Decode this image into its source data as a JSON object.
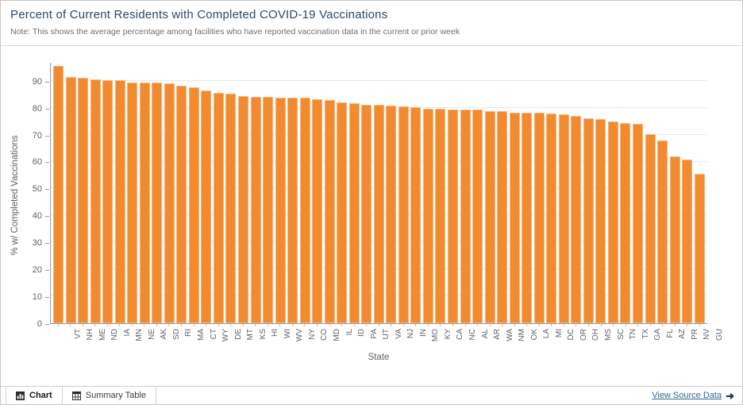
{
  "header": {
    "title": "Percent of Current Residents with Completed COVID-19 Vaccinations",
    "note": "Note: This shows the average percentage among facilities who have reported vaccination data in the current or prior week"
  },
  "chart_data": {
    "type": "bar",
    "title": "Percent of Current Residents with Completed COVID-19 Vaccinations",
    "xlabel": "State",
    "ylabel": "% w/ Completed Vaccinations",
    "ylim": [
      0,
      97
    ],
    "yticks": [
      0,
      10,
      20,
      30,
      40,
      50,
      60,
      70,
      80,
      90
    ],
    "grid": true,
    "bar_color": "#f28b30",
    "value_label_color": "#ffffff",
    "value_label_style": "rotated vertical, inside top of bar, 2 decimals",
    "categories": [
      "VT",
      "NH",
      "ME",
      "ND",
      "IA",
      "MN",
      "NE",
      "AK",
      "SD",
      "RI",
      "MA",
      "CT",
      "WY",
      "DE",
      "MT",
      "KS",
      "HI",
      "WI",
      "WV",
      "NY",
      "CO",
      "MD",
      "IL",
      "ID",
      "PA",
      "UT",
      "VA",
      "NJ",
      "IN",
      "MO",
      "KY",
      "CA",
      "NC",
      "AL",
      "AR",
      "WA",
      "NM",
      "OK",
      "LA",
      "MI",
      "DC",
      "OR",
      "OH",
      "MS",
      "SC",
      "TN",
      "TX",
      "GA",
      "FL",
      "AZ",
      "PR",
      "NV",
      "GU"
    ],
    "values": [
      95.42,
      91.45,
      91.24,
      90.5,
      90.25,
      90.14,
      89.47,
      89.35,
      89.31,
      88.99,
      88.03,
      87.51,
      86.28,
      85.6,
      85.18,
      84.42,
      84.15,
      84.04,
      83.82,
      83.78,
      83.73,
      83.19,
      83.0,
      81.99,
      81.73,
      81.06,
      80.95,
      80.85,
      80.41,
      80.08,
      79.73,
      79.58,
      79.42,
      79.23,
      79.18,
      78.83,
      78.81,
      78.26,
      78.14,
      78.11,
      77.91,
      77.61,
      76.86,
      76.11,
      75.78,
      74.83,
      74.33,
      74.13,
      70.28,
      67.71,
      61.92,
      60.87,
      55.56
    ]
  },
  "footer": {
    "tabs": [
      {
        "label": "Chart",
        "icon": "bar-chart-icon",
        "active": true
      },
      {
        "label": "Summary Table",
        "icon": "table-icon",
        "active": false
      }
    ],
    "source_link_label": "View Source Data",
    "source_arrow_icon": "➜"
  },
  "colors": {
    "bar": "#f28b30",
    "title_text": "#2e4a63",
    "link": "#336699",
    "arrow": "#17375e",
    "gridline": "#e9e9e9",
    "axis": "#9a9a9a"
  }
}
